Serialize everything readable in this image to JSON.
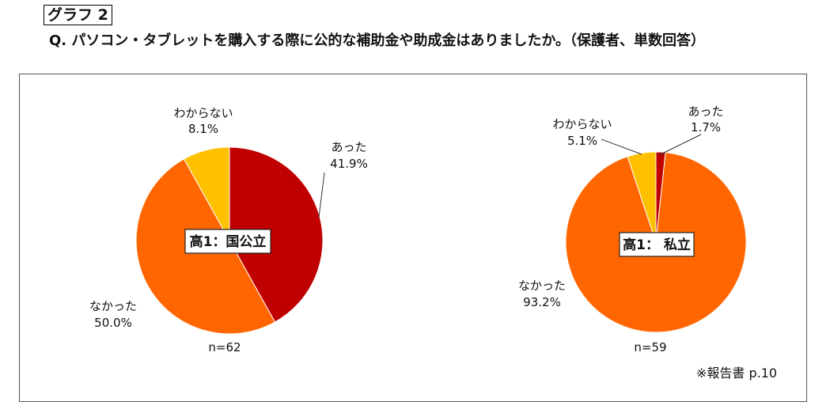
{
  "header": {
    "graph_label": "グラフ 2",
    "question": "Q.  パソコン・タブレットを購入する際に公的な補助金や助成金はありましたか。（保護者、単数回答）"
  },
  "source_note": "※報告書 p.10",
  "colors": {
    "atta": "#c00000",
    "nakatta": "#ff6600",
    "wakaranai": "#ffc000"
  },
  "chart_data": [
    {
      "type": "pie",
      "center_label": "高1：国公立",
      "n_label": "n=62",
      "slices": [
        {
          "label": "あった",
          "value": 41.9,
          "display": "41.9%",
          "color": "#c00000"
        },
        {
          "label": "なかった",
          "value": 50.0,
          "display": "50.0%",
          "color": "#ff6600"
        },
        {
          "label": "わからない",
          "value": 8.1,
          "display": "8.1%",
          "color": "#ffc000"
        }
      ]
    },
    {
      "type": "pie",
      "center_label": "高1： 私立",
      "n_label": "n=59",
      "slices": [
        {
          "label": "あった",
          "value": 1.7,
          "display": "1.7%",
          "color": "#c00000"
        },
        {
          "label": "なかった",
          "value": 93.2,
          "display": "93.2%",
          "color": "#ff6600"
        },
        {
          "label": "わからない",
          "value": 5.1,
          "display": "5.1%",
          "color": "#ffc000"
        }
      ]
    }
  ]
}
